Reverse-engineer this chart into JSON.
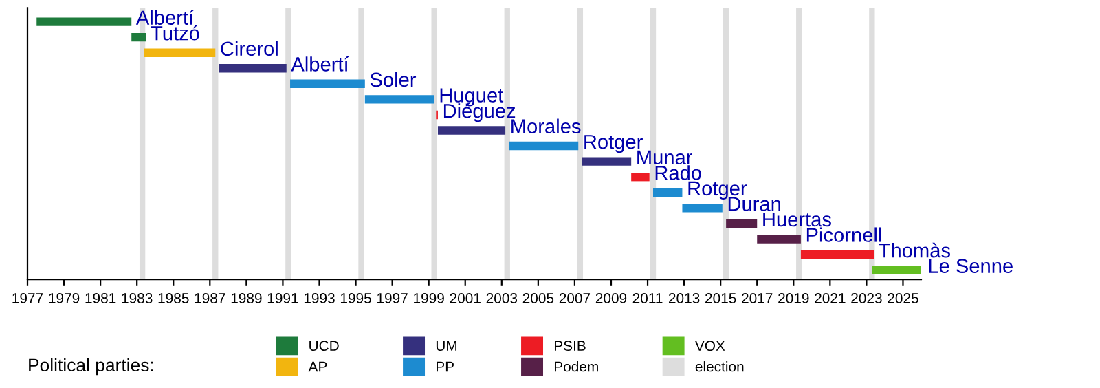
{
  "chart_data": {
    "type": "bar",
    "orientation": "horizontal",
    "legend": "bottom",
    "legend_title": "Political parties:",
    "tick_labels": "x",
    "grid": false,
    "categories": [
      "Albertí",
      "Tutzó",
      "Cirerol",
      "Albertí",
      "Soler",
      "Huguet",
      "Diéguez",
      "Morales",
      "Rotger",
      "Munar",
      "Rado",
      "Rotger",
      "Duran",
      "Huertas",
      "Picornell",
      "Thomàs",
      "Le Senne"
    ],
    "series": [
      {
        "name": "UCD",
        "color": "#1e7b3c",
        "base": [
          1977.5,
          1982.7,
          null,
          null,
          null,
          null,
          null,
          null,
          null,
          null,
          null,
          null,
          null,
          null,
          null,
          null,
          null
        ],
        "values": [
          5.2,
          0.8,
          null,
          null,
          null,
          null,
          null,
          null,
          null,
          null,
          null,
          null,
          null,
          null,
          null,
          null,
          null
        ]
      },
      {
        "name": "AP",
        "color": "#f2b50f",
        "base": [
          null,
          null,
          1983.4,
          null,
          null,
          null,
          null,
          null,
          null,
          null,
          null,
          null,
          null,
          null,
          null,
          null,
          null
        ],
        "values": [
          null,
          null,
          3.9,
          null,
          null,
          null,
          null,
          null,
          null,
          null,
          null,
          null,
          null,
          null,
          null,
          null,
          null
        ]
      },
      {
        "name": "UM",
        "color": "#35307e",
        "base": [
          null,
          null,
          null,
          1987.5,
          null,
          null,
          null,
          1999.5,
          null,
          2007.4,
          null,
          null,
          null,
          null,
          null,
          null,
          null
        ],
        "values": [
          null,
          null,
          null,
          3.7,
          null,
          null,
          null,
          3.7,
          null,
          2.7,
          null,
          null,
          null,
          null,
          null,
          null,
          null
        ]
      },
      {
        "name": "PP",
        "color": "#1d8bd0",
        "base": [
          null,
          null,
          null,
          null,
          1991.4,
          1995.5,
          null,
          null,
          2003.4,
          null,
          null,
          2011.3,
          2012.9,
          null,
          null,
          null,
          null
        ],
        "values": [
          null,
          null,
          null,
          null,
          4.1,
          3.8,
          null,
          null,
          3.8,
          null,
          null,
          1.6,
          2.2,
          null,
          null,
          null,
          null
        ]
      },
      {
        "name": "PSIB",
        "color": "#ed1c24",
        "base": [
          null,
          null,
          null,
          null,
          null,
          null,
          1999.4,
          null,
          null,
          null,
          2010.1,
          null,
          null,
          null,
          null,
          2019.4,
          null
        ],
        "values": [
          null,
          null,
          null,
          null,
          null,
          null,
          0.1,
          null,
          null,
          null,
          1.0,
          null,
          null,
          null,
          null,
          4.0,
          null
        ]
      },
      {
        "name": "Podem",
        "color": "#572048",
        "base": [
          null,
          null,
          null,
          null,
          null,
          null,
          null,
          null,
          null,
          null,
          null,
          null,
          null,
          2015.3,
          2017.0,
          null,
          null
        ],
        "values": [
          null,
          null,
          null,
          null,
          null,
          null,
          null,
          null,
          null,
          null,
          null,
          null,
          null,
          1.7,
          2.4,
          null,
          null
        ]
      },
      {
        "name": "VOX",
        "color": "#63be21",
        "base": [
          null,
          null,
          null,
          null,
          null,
          null,
          null,
          null,
          null,
          null,
          null,
          null,
          null,
          null,
          null,
          null,
          2023.3
        ],
        "values": [
          null,
          null,
          null,
          null,
          null,
          null,
          null,
          null,
          null,
          null,
          null,
          null,
          null,
          null,
          null,
          null,
          2.8
        ]
      }
    ],
    "ref_lines": [
      {
        "axis": "x",
        "value": 1983.3,
        "label": "election",
        "color": "#dddddd"
      },
      {
        "axis": "x",
        "value": 1987.3,
        "color": "#dddddd"
      },
      {
        "axis": "x",
        "value": 1991.3,
        "color": "#dddddd"
      },
      {
        "axis": "x",
        "value": 1995.3,
        "color": "#dddddd"
      },
      {
        "axis": "x",
        "value": 1999.3,
        "color": "#dddddd"
      },
      {
        "axis": "x",
        "value": 2003.3,
        "color": "#dddddd"
      },
      {
        "axis": "x",
        "value": 2007.3,
        "color": "#dddddd"
      },
      {
        "axis": "x",
        "value": 2011.3,
        "color": "#dddddd"
      },
      {
        "axis": "x",
        "value": 2015.3,
        "color": "#dddddd"
      },
      {
        "axis": "x",
        "value": 2019.3,
        "color": "#dddddd"
      },
      {
        "axis": "x",
        "value": 2023.3,
        "color": "#dddddd"
      }
    ],
    "xlim": [
      1977,
      2026
    ],
    "xticks": [
      1977,
      1979,
      1981,
      1983,
      1985,
      1987,
      1989,
      1991,
      1993,
      1995,
      1997,
      1999,
      2001,
      2003,
      2005,
      2007,
      2009,
      2011,
      2013,
      2015,
      2017,
      2019,
      2021,
      2023,
      2025
    ]
  }
}
